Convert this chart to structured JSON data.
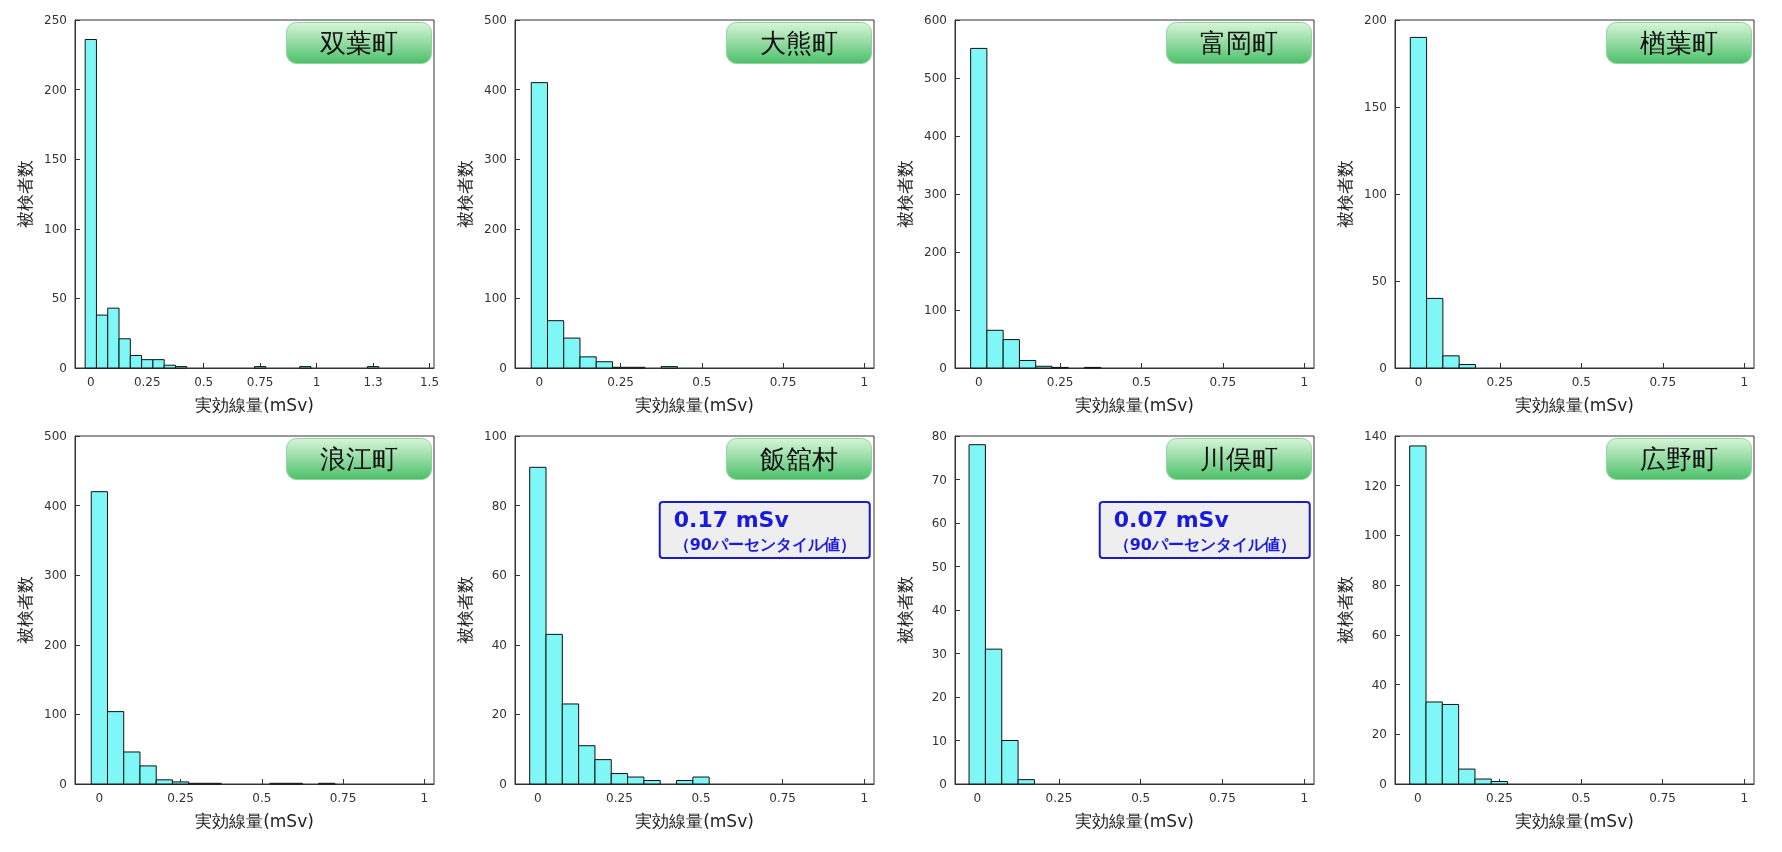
{
  "chart_data": [
    {
      "type": "histogram",
      "title": "双葉町",
      "xlabel": "実効線量(mSv)",
      "ylabel": "被検者数",
      "color": "#7ff7f7",
      "xlim": [
        -0.07,
        1.52
      ],
      "xticks": [
        0,
        0.25,
        0.5,
        0.75,
        1,
        {
          "value": 1.25,
          "label": "1.3"
        },
        1.5
      ],
      "ylim": [
        0,
        250
      ],
      "yticks": [
        0,
        50,
        100,
        150,
        200,
        250
      ],
      "bins": [
        -0.025,
        0.025,
        0.075,
        0.125,
        0.175,
        0.225,
        0.275,
        0.325,
        0.375,
        0.425,
        0.475,
        0.525,
        0.575,
        0.625,
        0.675,
        0.725,
        0.775,
        0.825,
        0.875,
        0.925,
        0.975,
        1.025,
        1.075,
        1.125,
        1.175,
        1.225,
        1.275
      ],
      "values": [
        236,
        38,
        43,
        21,
        9,
        6,
        6,
        2,
        1,
        0,
        0,
        0,
        0,
        0,
        0,
        1,
        0,
        0,
        0,
        1,
        0,
        0,
        0,
        0,
        0,
        1
      ]
    },
    {
      "type": "histogram",
      "title": "大熊町",
      "xlabel": "実効線量(mSv)",
      "ylabel": "被検者数",
      "color": "#7ff7f7",
      "xlim": [
        -0.075,
        1.03
      ],
      "xticks": [
        0,
        0.25,
        0.5,
        0.75,
        1
      ],
      "ylim": [
        0,
        500
      ],
      "yticks": [
        0,
        100,
        200,
        300,
        400,
        500
      ],
      "bins": [
        -0.025,
        0.025,
        0.075,
        0.125,
        0.175,
        0.225,
        0.275,
        0.325,
        0.375,
        0.425
      ],
      "values": [
        410,
        68,
        43,
        16,
        9,
        1,
        1,
        0,
        2
      ]
    },
    {
      "type": "histogram",
      "title": "富岡町",
      "xlabel": "実効線量(mSv)",
      "ylabel": "被検者数",
      "color": "#7ff7f7",
      "xlim": [
        -0.073,
        1.03
      ],
      "xticks": [
        0,
        0.25,
        0.5,
        0.75,
        1
      ],
      "ylim": [
        0,
        600
      ],
      "yticks": [
        0,
        100,
        200,
        300,
        400,
        500,
        600
      ],
      "bins": [
        -0.025,
        0.025,
        0.075,
        0.125,
        0.175,
        0.225,
        0.275,
        0.325,
        0.375
      ],
      "values": [
        551,
        65,
        49,
        13,
        3,
        1,
        0,
        1
      ]
    },
    {
      "type": "histogram",
      "title": "楢葉町",
      "xlabel": "実効線量(mSv)",
      "ylabel": "被検者数",
      "color": "#7ff7f7",
      "xlim": [
        -0.072,
        1.03
      ],
      "xticks": [
        0,
        0.25,
        0.5,
        0.75,
        1
      ],
      "ylim": [
        0,
        200
      ],
      "yticks": [
        0,
        50,
        100,
        150,
        200
      ],
      "bins": [
        -0.025,
        0.025,
        0.075,
        0.125,
        0.175
      ],
      "values": [
        190,
        40,
        7,
        2
      ]
    },
    {
      "type": "histogram",
      "title": "浪江町",
      "xlabel": "実効線量(mSv)",
      "ylabel": "被検者数",
      "color": "#7ff7f7",
      "xlim": [
        -0.075,
        1.03
      ],
      "xticks": [
        0,
        0.25,
        0.5,
        0.75,
        1
      ],
      "ylim": [
        0,
        500
      ],
      "yticks": [
        0,
        100,
        200,
        300,
        400,
        500
      ],
      "bins": [
        -0.025,
        0.025,
        0.075,
        0.125,
        0.175,
        0.225,
        0.275,
        0.325,
        0.375,
        0.425,
        0.475,
        0.525,
        0.575,
        0.625,
        0.675,
        0.725
      ],
      "values": [
        420,
        104,
        46,
        26,
        6,
        3,
        1,
        1,
        0,
        0,
        0,
        1,
        1,
        0,
        1
      ]
    },
    {
      "type": "histogram",
      "title": "飯舘村",
      "xlabel": "実効線量(mSv)",
      "ylabel": "被検者数",
      "color": "#7ff7f7",
      "xlim": [
        -0.07,
        1.03
      ],
      "xticks": [
        0,
        0.25,
        0.5,
        0.75,
        1
      ],
      "ylim": [
        0,
        100
      ],
      "yticks": [
        0,
        20,
        40,
        60,
        80,
        100
      ],
      "bins": [
        -0.025,
        0.025,
        0.075,
        0.125,
        0.175,
        0.225,
        0.275,
        0.325,
        0.375,
        0.425,
        0.475,
        0.525
      ],
      "values": [
        91,
        43,
        23,
        11,
        7,
        3,
        2,
        1,
        0,
        1,
        2
      ],
      "annotations": [
        "0.17 mSv",
        "（90パーセンタイル値）"
      ]
    },
    {
      "type": "histogram",
      "title": "川俣町",
      "xlabel": "実効線量(mSv)",
      "ylabel": "被検者数",
      "color": "#7ff7f7",
      "xlim": [
        -0.068,
        1.03
      ],
      "xticks": [
        0,
        0.25,
        0.5,
        0.75,
        1
      ],
      "ylim": [
        0,
        80
      ],
      "yticks": [
        0,
        10,
        20,
        30,
        40,
        50,
        60,
        70,
        80
      ],
      "bins": [
        -0.025,
        0.025,
        0.075,
        0.125,
        0.175
      ],
      "values": [
        78,
        31,
        10,
        1
      ],
      "annotations": [
        "0.07 mSv",
        "（90パーセンタイル値）"
      ]
    },
    {
      "type": "histogram",
      "title": "広野町",
      "xlabel": "実効線量(mSv)",
      "ylabel": "被検者数",
      "color": "#7ff7f7",
      "xlim": [
        -0.07,
        1.03
      ],
      "xticks": [
        0,
        0.25,
        0.5,
        0.75,
        1
      ],
      "ylim": [
        0,
        140
      ],
      "yticks": [
        0,
        20,
        40,
        60,
        80,
        100,
        120,
        140
      ],
      "bins": [
        -0.025,
        0.025,
        0.075,
        0.125,
        0.175,
        0.225,
        0.275
      ],
      "values": [
        136,
        33,
        32,
        6,
        2,
        1
      ]
    }
  ]
}
